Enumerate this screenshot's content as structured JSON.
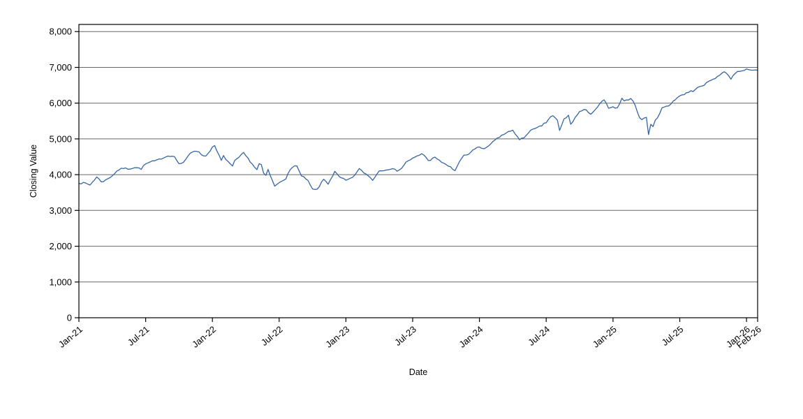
{
  "chart_data": {
    "type": "line",
    "title": "",
    "xlabel": "Date",
    "ylabel": "Closing Value",
    "x_unit": "months since Jan-2021",
    "xlim": [
      0,
      61
    ],
    "ylim": [
      0,
      8200
    ],
    "grid": "horizontal",
    "legend": "none",
    "colors": {
      "line": "#3465a4",
      "grid": "#666666",
      "axis": "#000000",
      "background": "#ffffff"
    },
    "x_ticks": [
      {
        "t": 0,
        "label": "Jan-21"
      },
      {
        "t": 6,
        "label": "Jul-21"
      },
      {
        "t": 12,
        "label": "Jan-22"
      },
      {
        "t": 18,
        "label": "Jul-22"
      },
      {
        "t": 24,
        "label": "Jan-23"
      },
      {
        "t": 30,
        "label": "Jul-23"
      },
      {
        "t": 36,
        "label": "Jan-24"
      },
      {
        "t": 42,
        "label": "Jul-24"
      },
      {
        "t": 48,
        "label": "Jan-25"
      },
      {
        "t": 54,
        "label": "Jul-25"
      },
      {
        "t": 60,
        "label": "Jan-26"
      },
      {
        "t": 61,
        "label": "Feb-26"
      }
    ],
    "y_ticks": [
      {
        "v": 0,
        "label": "0"
      },
      {
        "v": 1000,
        "label": "1,000"
      },
      {
        "v": 2000,
        "label": "2,000"
      },
      {
        "v": 3000,
        "label": "3,000"
      },
      {
        "v": 4000,
        "label": "4,000"
      },
      {
        "v": 5000,
        "label": "5,000"
      },
      {
        "v": 6000,
        "label": "6,000"
      },
      {
        "v": 7000,
        "label": "7,000"
      },
      {
        "v": 8000,
        "label": "8,000"
      }
    ],
    "series": [
      {
        "name": "Closing Value",
        "color": "#3465a4",
        "points": [
          [
            0,
            3756
          ],
          [
            0.5,
            3768
          ],
          [
            1,
            3714
          ],
          [
            1.6,
            3934
          ],
          [
            2,
            3811
          ],
          [
            2.3,
            3821
          ],
          [
            3,
            3973
          ],
          [
            3.5,
            4128
          ],
          [
            4,
            4181
          ],
          [
            4.5,
            4163
          ],
          [
            5,
            4204
          ],
          [
            5.6,
            4166
          ],
          [
            6,
            4298
          ],
          [
            6.5,
            4360
          ],
          [
            7,
            4395
          ],
          [
            7.5,
            4468
          ],
          [
            8,
            4523
          ],
          [
            8.5,
            4537
          ],
          [
            9,
            4308
          ],
          [
            9.4,
            4326
          ],
          [
            10,
            4605
          ],
          [
            10.5,
            4690
          ],
          [
            11,
            4567
          ],
          [
            11.4,
            4513
          ],
          [
            12,
            4766
          ],
          [
            12.2,
            4797
          ],
          [
            12.9,
            4326
          ],
          [
            13,
            4516
          ],
          [
            13.8,
            4226
          ],
          [
            14,
            4374
          ],
          [
            14.9,
            4631
          ],
          [
            15,
            4530
          ],
          [
            16,
            4132
          ],
          [
            16.3,
            4392
          ],
          [
            16.7,
            3901
          ],
          [
            17,
            4132
          ],
          [
            17.6,
            3667
          ],
          [
            18,
            3785
          ],
          [
            18.6,
            3902
          ],
          [
            19,
            4130
          ],
          [
            19.5,
            4305
          ],
          [
            20,
            3955
          ],
          [
            20.5,
            3873
          ],
          [
            21,
            3586
          ],
          [
            21.4,
            3577
          ],
          [
            22,
            3872
          ],
          [
            22.4,
            3748
          ],
          [
            23,
            4080
          ],
          [
            23.4,
            3934
          ],
          [
            24,
            3840
          ],
          [
            24.5,
            3892
          ],
          [
            25,
            4077
          ],
          [
            25.1,
            4180
          ],
          [
            26,
            3970
          ],
          [
            26.4,
            3855
          ],
          [
            27,
            4109
          ],
          [
            27.5,
            4138
          ],
          [
            28,
            4169
          ],
          [
            28.6,
            4115
          ],
          [
            29,
            4180
          ],
          [
            29.5,
            4382
          ],
          [
            30,
            4450
          ],
          [
            30.9,
            4589
          ],
          [
            31.5,
            4370
          ],
          [
            32,
            4508
          ],
          [
            32.6,
            4330
          ],
          [
            33,
            4288
          ],
          [
            33.8,
            4117
          ],
          [
            34,
            4238
          ],
          [
            34.5,
            4514
          ],
          [
            35,
            4568
          ],
          [
            35.5,
            4719
          ],
          [
            36,
            4770
          ],
          [
            36.3,
            4688
          ],
          [
            37,
            4846
          ],
          [
            37.5,
            5000
          ],
          [
            38,
            5096
          ],
          [
            38.5,
            5175
          ],
          [
            39,
            5254
          ],
          [
            39.6,
            4967
          ],
          [
            40,
            5036
          ],
          [
            40.5,
            5222
          ],
          [
            41,
            5278
          ],
          [
            41.5,
            5354
          ],
          [
            42,
            5460
          ],
          [
            42.5,
            5667
          ],
          [
            43,
            5522
          ],
          [
            43.15,
            5186
          ],
          [
            43.6,
            5554
          ],
          [
            44,
            5648
          ],
          [
            44.2,
            5408
          ],
          [
            44.7,
            5634
          ],
          [
            45,
            5762
          ],
          [
            45.5,
            5815
          ],
          [
            46,
            5705
          ],
          [
            46.3,
            5782
          ],
          [
            47,
            6032
          ],
          [
            47.2,
            6090
          ],
          [
            47.6,
            5867
          ],
          [
            48,
            5882
          ],
          [
            48.35,
            5827
          ],
          [
            48.8,
            6119
          ],
          [
            49,
            6041
          ],
          [
            49.6,
            6144
          ],
          [
            50,
            5955
          ],
          [
            50.45,
            5522
          ],
          [
            51,
            5612
          ],
          [
            51.25,
            4983
          ],
          [
            51.35,
            5456
          ],
          [
            51.5,
            5283
          ],
          [
            51.8,
            5525
          ],
          [
            52,
            5569
          ],
          [
            52.4,
            5886
          ],
          [
            53,
            5912
          ],
          [
            53.5,
            6090
          ],
          [
            54,
            6205
          ],
          [
            54.5,
            6263
          ],
          [
            55,
            6339
          ],
          [
            55.05,
            6238
          ],
          [
            55.5,
            6449
          ],
          [
            56,
            6460
          ],
          [
            56.5,
            6584
          ],
          [
            57,
            6688
          ],
          [
            57.5,
            6735
          ],
          [
            57.9,
            6890
          ],
          [
            58.2,
            6852
          ],
          [
            58.6,
            6672
          ],
          [
            59,
            6849
          ],
          [
            59.4,
            6901
          ],
          [
            60,
            6940
          ],
          [
            60.3,
            6965
          ],
          [
            60.6,
            6902
          ],
          [
            61,
            6920
          ]
        ]
      }
    ]
  }
}
